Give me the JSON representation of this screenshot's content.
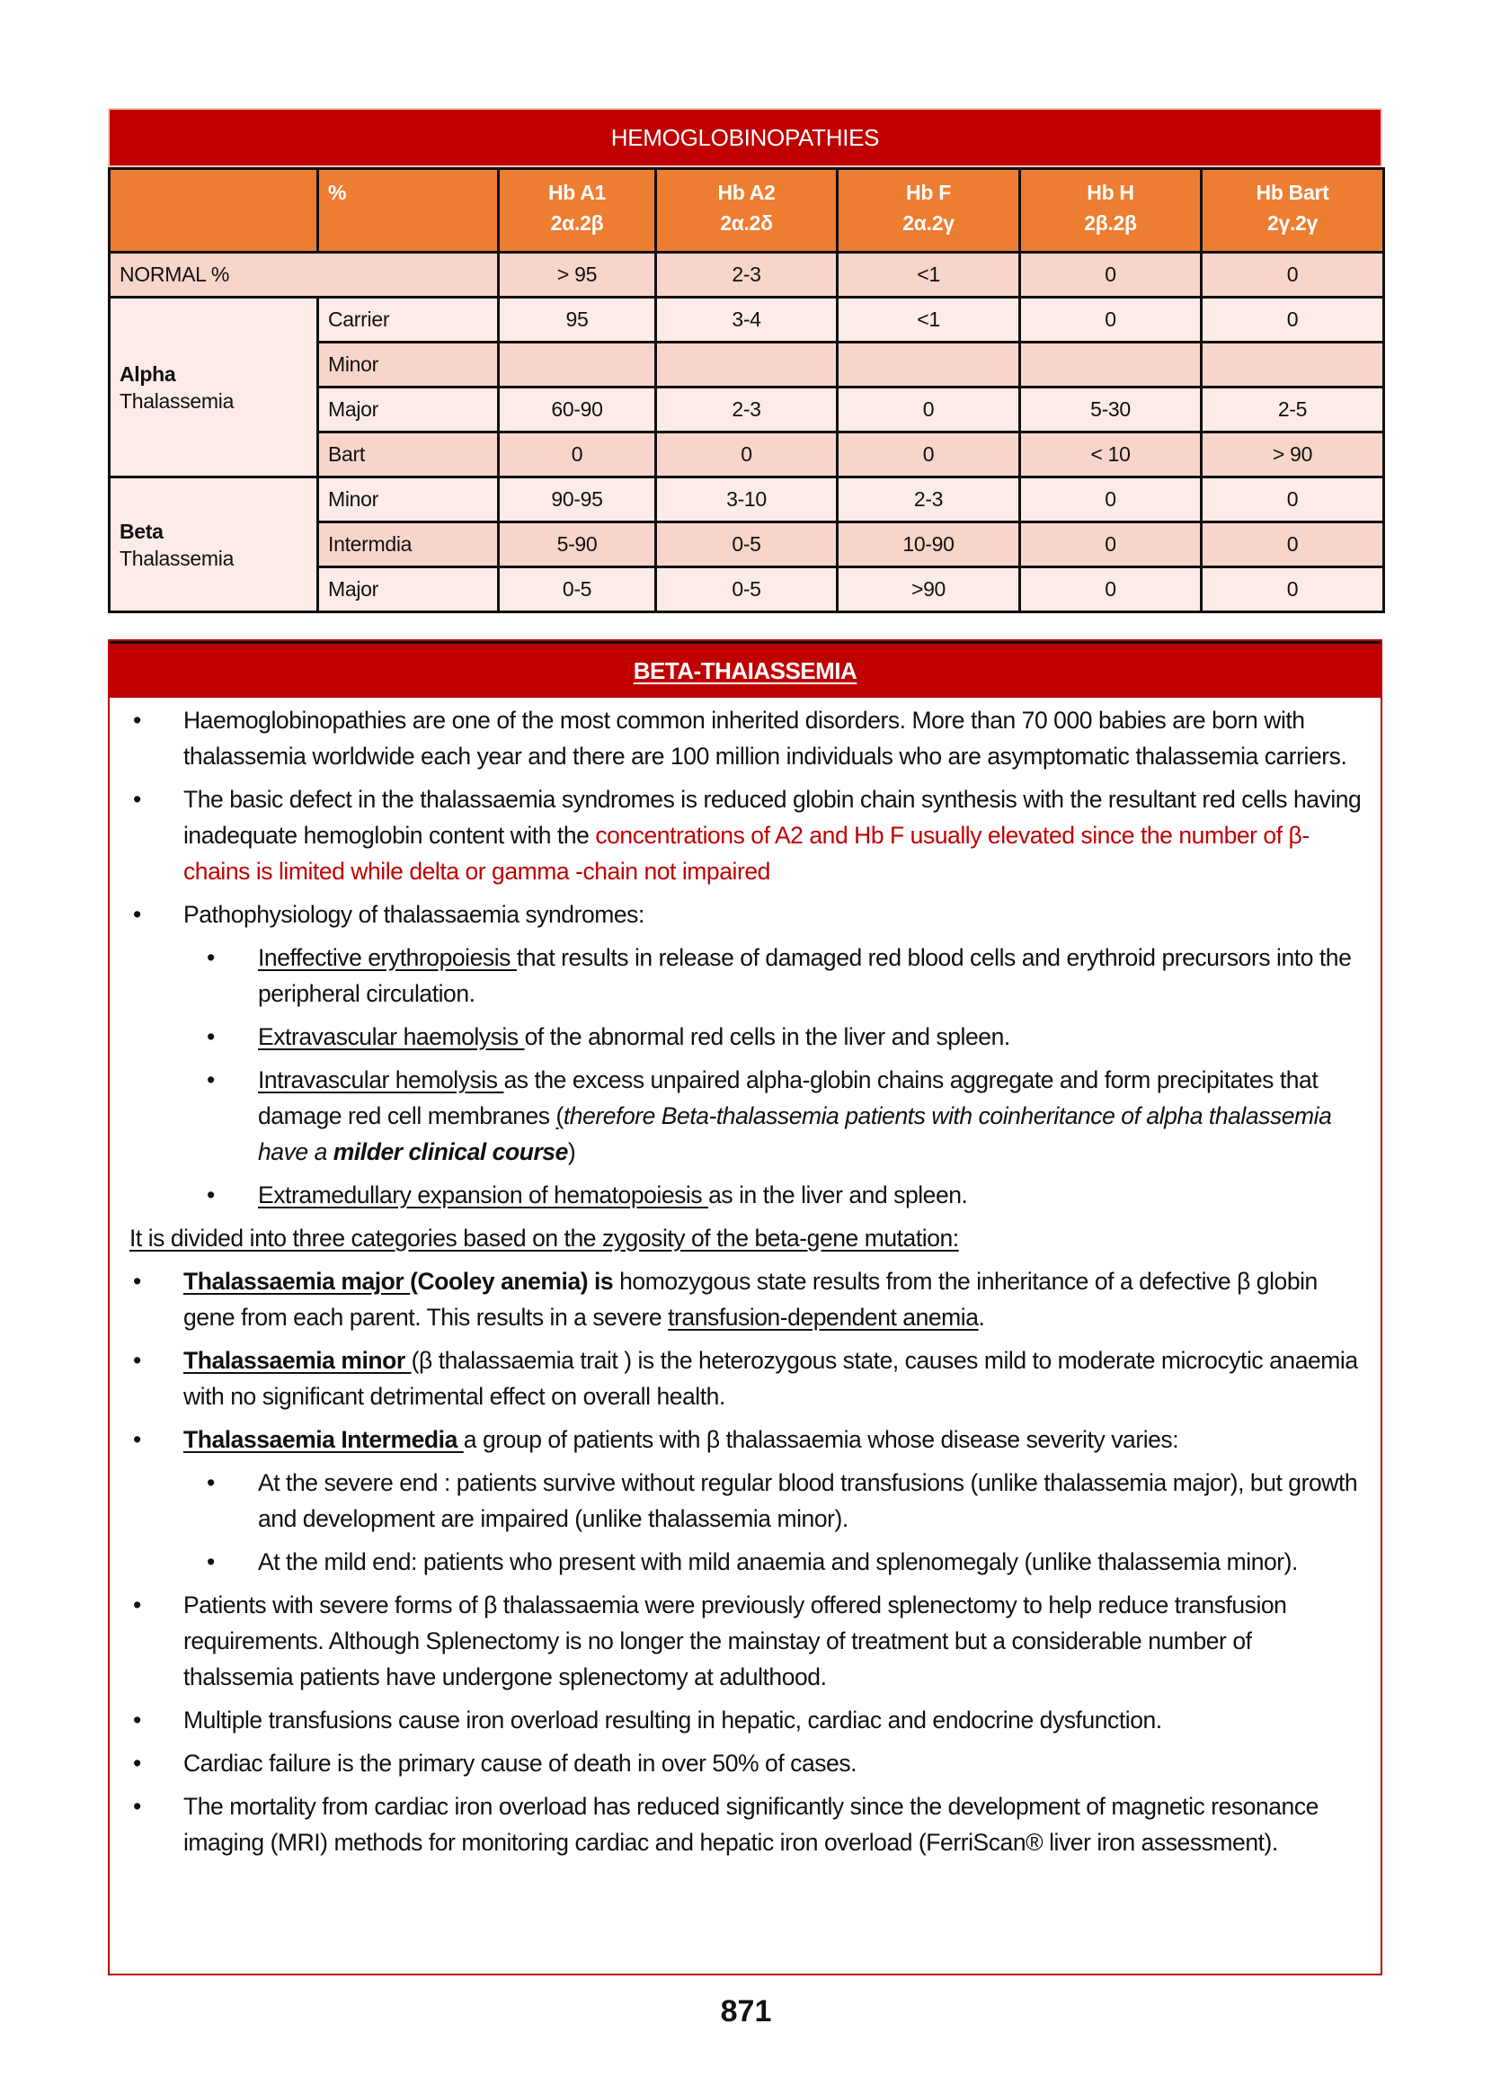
{
  "table": {
    "title": "HEMOGLOBINOPATHIES",
    "header": {
      "pct": "%",
      "columns": [
        {
          "name": "Hb A1",
          "chains": "2α.2β"
        },
        {
          "name": "Hb A2",
          "chains": "2α.2δ"
        },
        {
          "name": "Hb F",
          "chains": "2α.2γ"
        },
        {
          "name": "Hb H",
          "chains": "2β.2β"
        },
        {
          "name": "Hb Bart",
          "chains": "2γ.2γ"
        }
      ]
    },
    "normal": {
      "label": "NORMAL %",
      "values": [
        "> 95",
        "2-3",
        "<1",
        "0",
        "0"
      ]
    },
    "groups": [
      {
        "title": "Alpha",
        "subtitle": "Thalassemia",
        "rows": [
          {
            "label": "Carrier",
            "values": [
              "95",
              "3-4",
              "<1",
              "0",
              "0"
            ]
          },
          {
            "label": "Minor",
            "values": [
              "",
              "",
              "",
              "",
              ""
            ]
          },
          {
            "label": "Major",
            "values": [
              "60-90",
              "2-3",
              "0",
              "5-30",
              "2-5"
            ]
          },
          {
            "label": "Bart",
            "values": [
              "0",
              "0",
              "0",
              "< 10",
              "> 90"
            ]
          }
        ]
      },
      {
        "title": "Beta",
        "subtitle": "Thalassemia",
        "rows": [
          {
            "label": "Minor",
            "values": [
              "90-95",
              "3-10",
              "2-3",
              "0",
              "0"
            ]
          },
          {
            "label": "Intermdia",
            "values": [
              "5-90",
              "0-5",
              "10-90",
              "0",
              "0"
            ]
          },
          {
            "label": "Major",
            "values": [
              "0-5",
              "0-5",
              ">90",
              "0",
              "0"
            ]
          }
        ]
      }
    ]
  },
  "section": {
    "title": "BETA-THAIASSEMIA",
    "bullet": "•",
    "paragraphs": [
      {
        "level": 1,
        "segs": [
          {
            "t": "Haemoglobinopathies are one of the most common inherited disorders. More than 70 000 babies are born with thalassemia worldwide each year and there are 100 million individuals who are asymptomatic thalassemia carriers."
          }
        ]
      },
      {
        "level": 1,
        "segs": [
          {
            "t": "The basic defect in the thalassaemia syndromes is reduced globin chain synthesis with the resultant red cells having inadequate hemoglobin content with the "
          },
          {
            "t": "concentrations of A2 and Hb F usually elevated since the number of β-chains is limited while delta or gamma -chain not impaired",
            "red": true
          }
        ]
      },
      {
        "level": 1,
        "segs": [
          {
            "t": "Pathophysiology of thalassaemia syndromes:"
          }
        ]
      },
      {
        "level": 2,
        "segs": [
          {
            "t": "Ineffective erythropoiesis ",
            "u": true
          },
          {
            "t": "that results in release of damaged red blood cells and erythroid precursors into the peripheral circulation."
          }
        ]
      },
      {
        "level": 2,
        "segs": [
          {
            "t": "Extravascular haemolysis ",
            "u": true
          },
          {
            "t": "of the abnormal red cells in the liver and spleen."
          }
        ]
      },
      {
        "level": 2,
        "segs": [
          {
            "t": "Intravascular hemolysis ",
            "u": true
          },
          {
            "t": "as the excess unpaired alpha-globin chains aggregate and form precipitates that damage red cell membranes "
          },
          {
            "t": "(",
            "u": true
          },
          {
            "t": "therefore Beta-thalassemia patients with coinheritance of alpha thalassemia have a ",
            "i": true
          },
          {
            "t": "milder clinical course",
            "i": true,
            "b": true
          },
          {
            "t": ")"
          }
        ]
      },
      {
        "level": 2,
        "segs": [
          {
            "t": "Extramedullary expansion of hematopoiesis ",
            "u": true
          },
          {
            "t": "as in the liver and spleen."
          }
        ]
      },
      {
        "level": 0,
        "segs": [
          {
            "t": "It is divided into three categories based on the zygosity of the beta-gene mutation:",
            "u": true
          }
        ]
      },
      {
        "level": 1,
        "segs": [
          {
            "t": "Thalassaemia major ",
            "u": true,
            "b": true
          },
          {
            "t": "(Cooley anemia) is",
            "b": true
          },
          {
            "t": " homozygous state results from the inheritance of a defective β globin gene from each parent. This results in a severe "
          },
          {
            "t": "transfusion-dependent anemia",
            "u": true
          },
          {
            "t": "."
          }
        ]
      },
      {
        "level": 1,
        "segs": [
          {
            "t": "Thalassaemia minor ",
            "u": true,
            "b": true
          },
          {
            "t": "(β thalassaemia trait )  is the heterozygous state, causes mild to moderate microcytic anaemia with no significant detrimental effect on overall health."
          }
        ]
      },
      {
        "level": 1,
        "segs": [
          {
            "t": "Thalassaemia Intermedia ",
            "u": true,
            "b": true
          },
          {
            "t": "a group of patients with β thalassaemia whose disease severity varies:"
          }
        ]
      },
      {
        "level": 2,
        "segs": [
          {
            "t": "At the severe end : patients survive without regular blood transfusions (unlike thalassemia major), but growth and development are impaired (unlike thalassemia minor)."
          }
        ]
      },
      {
        "level": 2,
        "segs": [
          {
            "t": "At the mild end: patients who present with mild anaemia and splenomegaly (unlike thalassemia minor)."
          }
        ]
      },
      {
        "level": 1,
        "segs": [
          {
            "t": "Patients with severe forms of β thalassaemia were previously offered splenectomy to help reduce transfusion requirements. Although Splenectomy is no longer the mainstay of treatment but a considerable number of thalssemia patients have undergone splenectomy at adulthood."
          }
        ]
      },
      {
        "level": 1,
        "segs": [
          {
            "t": "Multiple transfusions cause iron overload resulting in hepatic, cardiac and endocrine dysfunction."
          }
        ]
      },
      {
        "level": 1,
        "segs": [
          {
            "t": "Cardiac failure is the primary cause of death in over 50% of cases."
          }
        ]
      },
      {
        "level": 1,
        "segs": [
          {
            "t": "The mortality from cardiac iron overload has reduced significantly since the development of magnetic resonance imaging (MRI) methods for monitoring cardiac and hepatic iron overload (FerriScan® liver iron assessment)."
          }
        ]
      }
    ]
  },
  "page_number": "871",
  "colors": {
    "title_red": "#c00000",
    "header_orange": "#ed7d31",
    "row_dark": "#f8d5cb",
    "row_light": "#fcebe6",
    "highlight_text": "#c00000"
  }
}
